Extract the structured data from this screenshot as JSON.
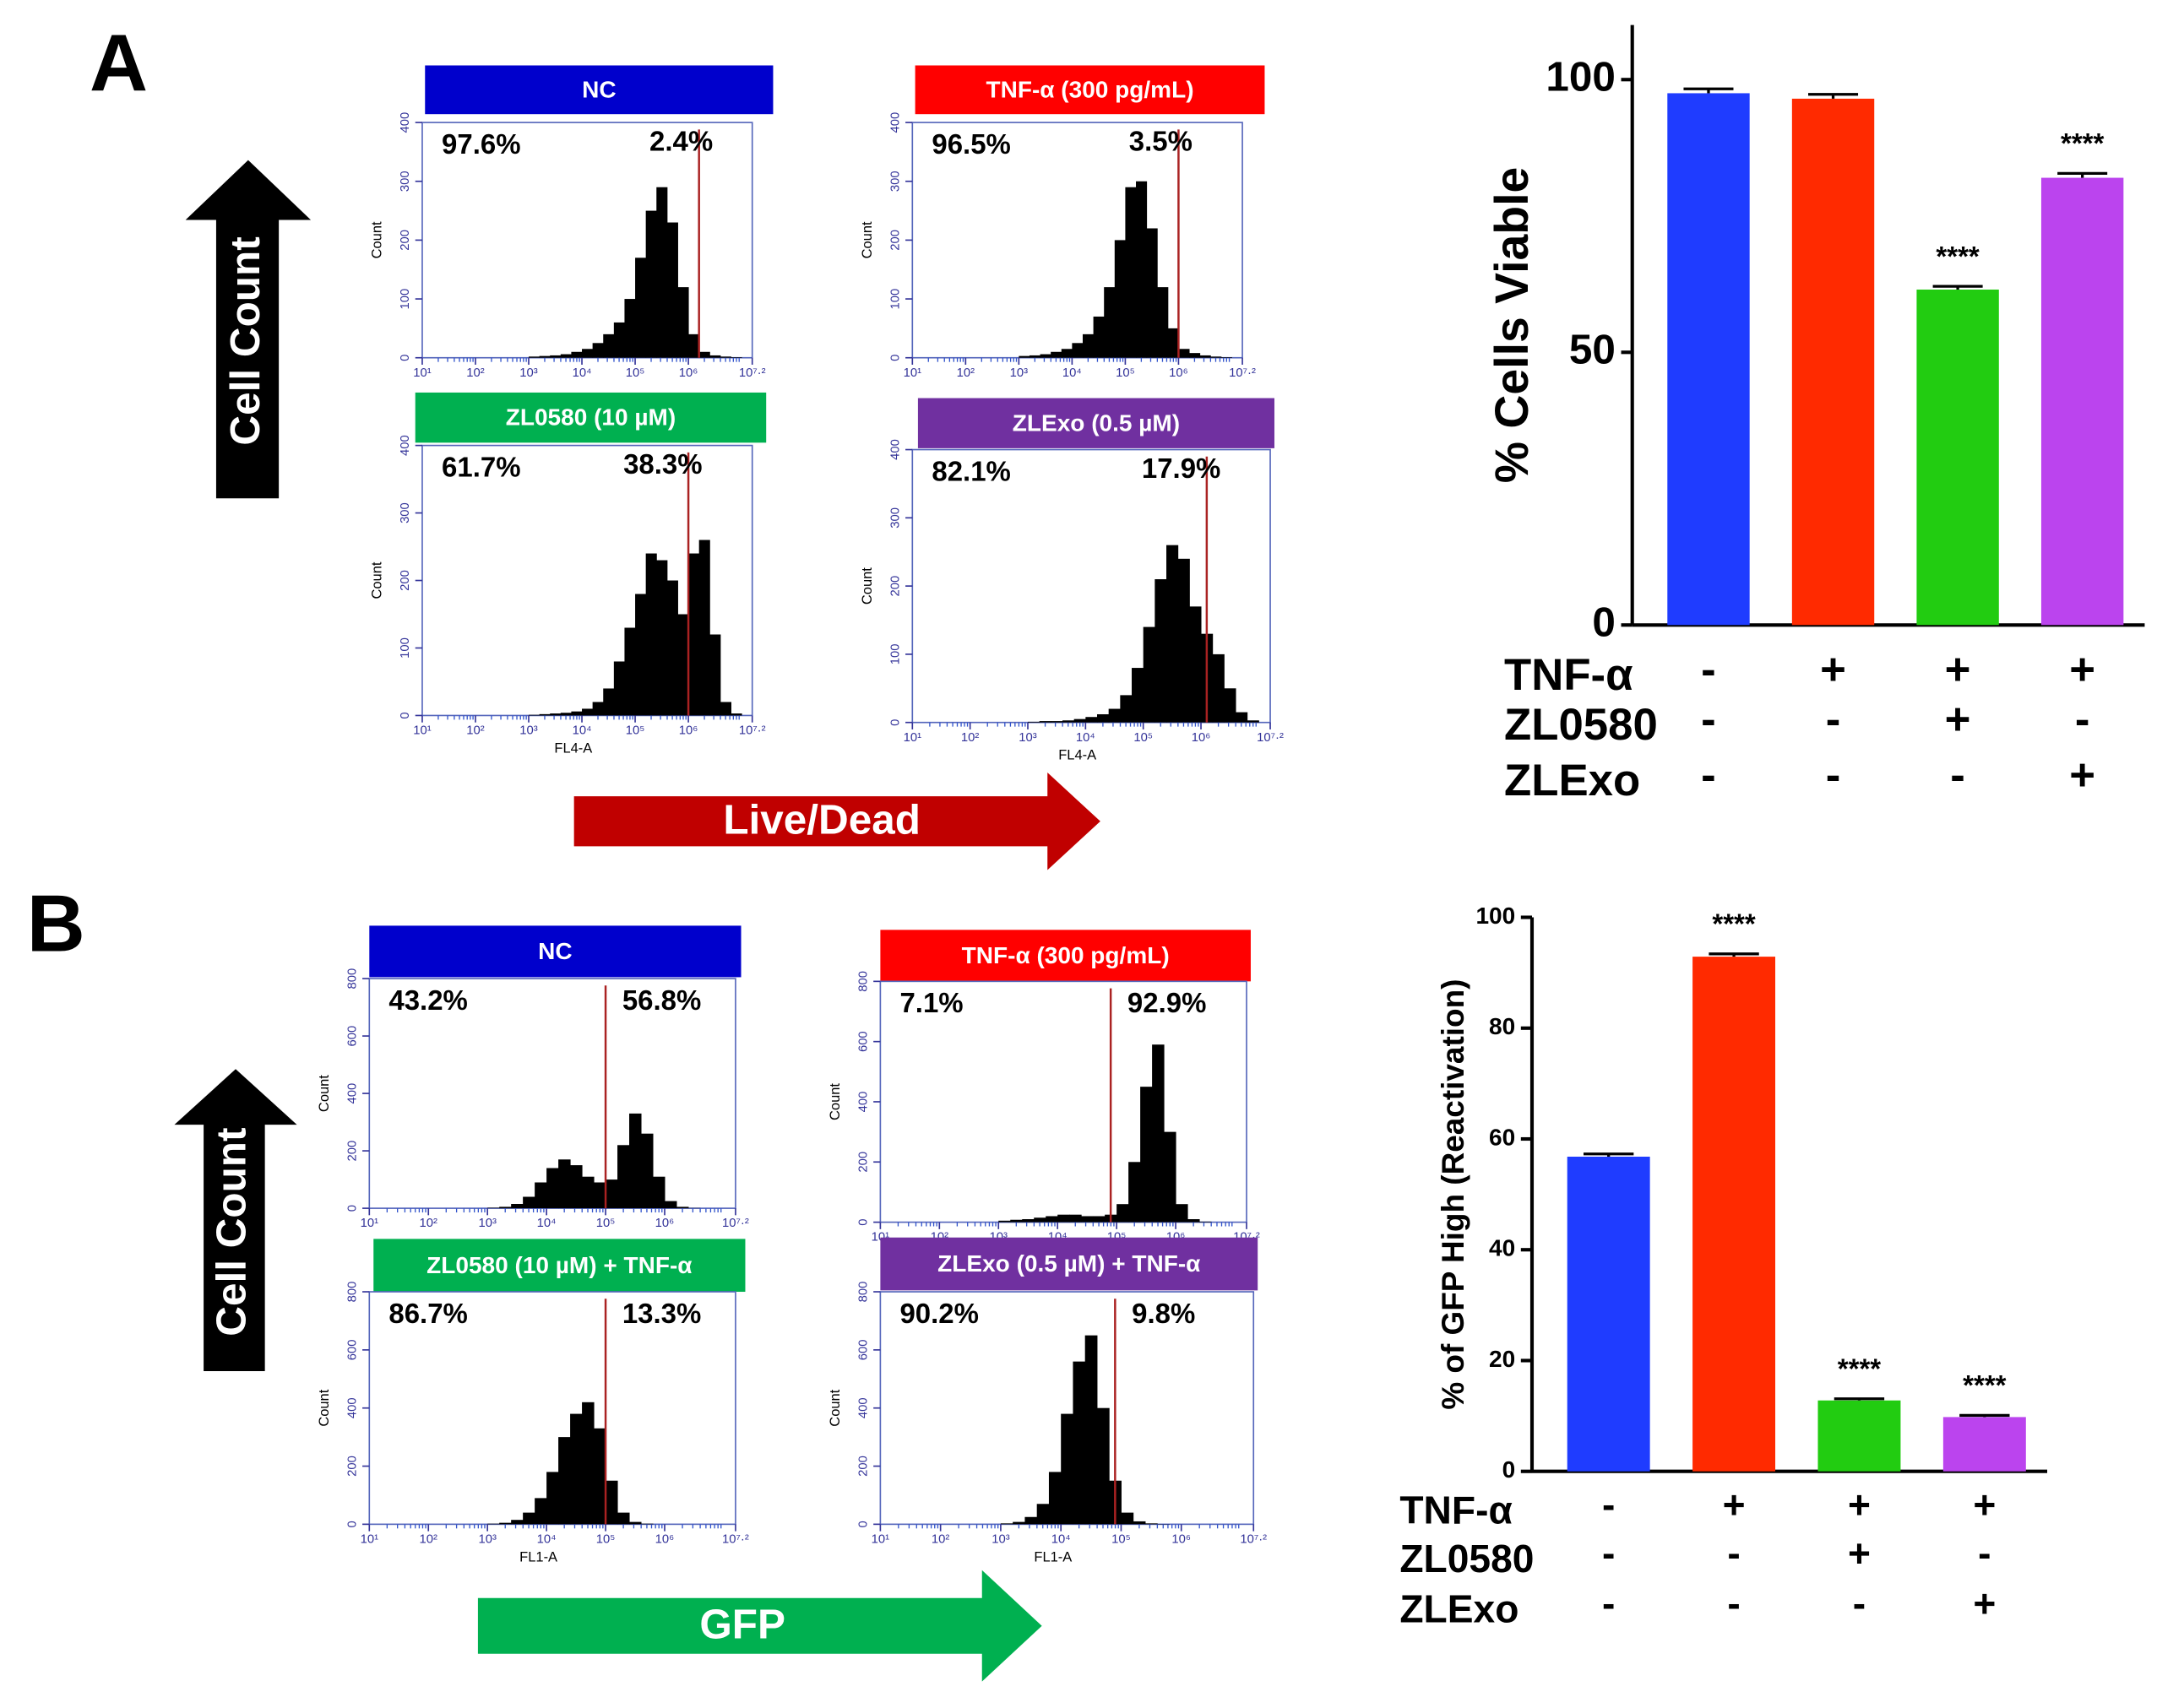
{
  "panel_labels": [
    "A",
    "B"
  ],
  "axis_arrows": {
    "a_y": "Cell Count",
    "a_x": "Live/Dead",
    "b_y": "Cell Count",
    "b_x": "GFP"
  },
  "chart_data": [
    {
      "type": "histogram",
      "title": "NC",
      "title_color": "#0000cc",
      "ylabel": "Count",
      "ylim": [
        0,
        400
      ],
      "yticks": [
        0,
        100,
        200,
        300,
        400
      ],
      "xlim": [
        1,
        7.2
      ],
      "xticks": [
        {
          "value": 1,
          "label": "10¹"
        },
        {
          "value": 2,
          "label": "10²"
        },
        {
          "value": 3,
          "label": "10³"
        },
        {
          "value": 4,
          "label": "10⁴"
        },
        {
          "value": 5,
          "label": "10⁵"
        },
        {
          "value": 6,
          "label": "10⁶"
        },
        {
          "value": 7.2,
          "label": "10⁷·²"
        }
      ],
      "bins": [
        3.0,
        3.2,
        3.4,
        3.6,
        3.8,
        4.0,
        4.2,
        4.4,
        4.6,
        4.8,
        5.0,
        5.2,
        5.4,
        5.6,
        5.8,
        6.0,
        6.2,
        6.4,
        6.6,
        6.8,
        7.0,
        7.2
      ],
      "values": [
        2,
        3,
        4,
        6,
        10,
        15,
        25,
        40,
        60,
        100,
        170,
        250,
        290,
        230,
        120,
        40,
        10,
        4,
        2,
        1,
        0
      ],
      "color": "#000000",
      "gate": 6.2,
      "gate_color": "#aa2222",
      "annotations": [
        "97.6%",
        "2.4%"
      ]
    },
    {
      "type": "histogram",
      "title": "TNF-α (300 pg/mL)",
      "title_color": "#ff0000",
      "ylabel": "Count",
      "ylim": [
        0,
        400
      ],
      "yticks": [
        0,
        100,
        200,
        300,
        400
      ],
      "xlim": [
        1,
        7.2
      ],
      "xticks": [
        {
          "value": 1,
          "label": "10¹"
        },
        {
          "value": 2,
          "label": "10²"
        },
        {
          "value": 3,
          "label": "10³"
        },
        {
          "value": 4,
          "label": "10⁴"
        },
        {
          "value": 5,
          "label": "10⁵"
        },
        {
          "value": 6,
          "label": "10⁶"
        },
        {
          "value": 7.2,
          "label": "10⁷·²"
        }
      ],
      "bins": [
        3.0,
        3.2,
        3.4,
        3.6,
        3.8,
        4.0,
        4.2,
        4.4,
        4.6,
        4.8,
        5.0,
        5.2,
        5.4,
        5.6,
        5.8,
        6.0,
        6.2,
        6.4,
        6.6,
        6.8,
        7.0,
        7.2
      ],
      "values": [
        3,
        4,
        6,
        10,
        15,
        25,
        40,
        70,
        120,
        200,
        290,
        300,
        220,
        120,
        50,
        15,
        8,
        4,
        2,
        1,
        0
      ],
      "color": "#000000",
      "gate": 6.0,
      "gate_color": "#aa2222",
      "annotations": [
        "96.5%",
        "3.5%"
      ]
    },
    {
      "type": "histogram",
      "title": "ZL0580  (10 µM)",
      "title_color": "#00b050",
      "ylabel": "Count",
      "xlabel": "FL4-A",
      "ylim": [
        0,
        400
      ],
      "yticks": [
        0,
        100,
        200,
        300,
        400
      ],
      "xlim": [
        1,
        7.2
      ],
      "xticks": [
        {
          "value": 1,
          "label": "10¹"
        },
        {
          "value": 2,
          "label": "10²"
        },
        {
          "value": 3,
          "label": "10³"
        },
        {
          "value": 4,
          "label": "10⁴"
        },
        {
          "value": 5,
          "label": "10⁵"
        },
        {
          "value": 6,
          "label": "10⁶"
        },
        {
          "value": 7.2,
          "label": "10⁷·²"
        }
      ],
      "bins": [
        3.0,
        3.2,
        3.4,
        3.6,
        3.8,
        4.0,
        4.2,
        4.4,
        4.6,
        4.8,
        5.0,
        5.2,
        5.4,
        5.6,
        5.8,
        6.0,
        6.2,
        6.4,
        6.6,
        6.8,
        7.0,
        7.2
      ],
      "values": [
        1,
        2,
        3,
        4,
        6,
        10,
        20,
        40,
        80,
        130,
        180,
        240,
        230,
        200,
        150,
        240,
        260,
        120,
        20,
        3,
        0
      ],
      "color": "#000000",
      "gate": 6.0,
      "gate_color": "#aa2222",
      "annotations": [
        "61.7%",
        "38.3%"
      ]
    },
    {
      "type": "histogram",
      "title": "ZLExo (0.5 µM)",
      "title_color": "#7030a0",
      "ylabel": "Count",
      "xlabel": "FL4-A",
      "ylim": [
        0,
        400
      ],
      "yticks": [
        0,
        100,
        200,
        300,
        400
      ],
      "xlim": [
        1,
        7.2
      ],
      "xticks": [
        {
          "value": 1,
          "label": "10¹"
        },
        {
          "value": 2,
          "label": "10²"
        },
        {
          "value": 3,
          "label": "10³"
        },
        {
          "value": 4,
          "label": "10⁴"
        },
        {
          "value": 5,
          "label": "10⁵"
        },
        {
          "value": 6,
          "label": "10⁶"
        },
        {
          "value": 7.2,
          "label": "10⁷·²"
        }
      ],
      "bins": [
        3.0,
        3.2,
        3.4,
        3.6,
        3.8,
        4.0,
        4.2,
        4.4,
        4.6,
        4.8,
        5.0,
        5.2,
        5.4,
        5.6,
        5.8,
        6.0,
        6.2,
        6.4,
        6.6,
        6.8,
        7.0,
        7.2
      ],
      "values": [
        1,
        2,
        2,
        3,
        5,
        8,
        12,
        20,
        40,
        80,
        140,
        210,
        260,
        240,
        170,
        130,
        100,
        50,
        15,
        3,
        0
      ],
      "color": "#000000",
      "gate": 6.1,
      "gate_color": "#aa2222",
      "annotations": [
        "82.1%",
        "17.9%"
      ]
    },
    {
      "type": "bar",
      "ylabel": "% Cells Viable",
      "ylim": [
        0,
        110
      ],
      "yticks": [
        0,
        50,
        100
      ],
      "values": [
        97.5,
        96.5,
        61.5,
        82
      ],
      "errors": [
        0.8,
        0.8,
        0.6,
        0.8
      ],
      "colors": [
        "#1f3cff",
        "#ff2a00",
        "#22cc11",
        "#bb44ee"
      ],
      "significance": [
        null,
        null,
        "****",
        "****"
      ],
      "conditions": [
        {
          "name": "TNF-α",
          "signs": [
            "-",
            "+",
            "+",
            "+"
          ]
        },
        {
          "name": "ZL0580",
          "signs": [
            "-",
            "-",
            "+",
            "-"
          ]
        },
        {
          "name": "ZLExo",
          "signs": [
            "-",
            "-",
            "-",
            "+"
          ]
        }
      ]
    },
    {
      "type": "histogram",
      "title": "NC",
      "title_color": "#0000cc",
      "ylabel": "Count",
      "ylim": [
        0,
        800
      ],
      "yticks": [
        0,
        200,
        400,
        600,
        800
      ],
      "xlim": [
        1,
        7.2
      ],
      "xticks": [
        {
          "value": 1,
          "label": "10¹"
        },
        {
          "value": 2,
          "label": "10²"
        },
        {
          "value": 3,
          "label": "10³"
        },
        {
          "value": 4,
          "label": "10⁴"
        },
        {
          "value": 5,
          "label": "10⁵"
        },
        {
          "value": 6,
          "label": "10⁶"
        },
        {
          "value": 7.2,
          "label": "10⁷·²"
        }
      ],
      "bins": [
        3.0,
        3.2,
        3.4,
        3.6,
        3.8,
        4.0,
        4.2,
        4.4,
        4.6,
        4.8,
        5.0,
        5.2,
        5.4,
        5.6,
        5.8,
        6.0,
        6.2,
        6.4,
        6.6,
        6.8,
        7.0,
        7.2
      ],
      "values": [
        2,
        5,
        15,
        40,
        90,
        140,
        170,
        150,
        110,
        90,
        100,
        220,
        330,
        260,
        110,
        25,
        5,
        1,
        0,
        0,
        0
      ],
      "color": "#000000",
      "gate": 5.0,
      "gate_color": "#aa2222",
      "annotations": [
        "43.2%",
        "56.8%"
      ]
    },
    {
      "type": "histogram",
      "title": "TNF-α (300 pg/mL)",
      "title_color": "#ff0000",
      "ylabel": "Count",
      "ylim": [
        0,
        800
      ],
      "yticks": [
        0,
        200,
        400,
        600,
        800
      ],
      "xlim": [
        1,
        7.2
      ],
      "xticks": [
        {
          "value": 1,
          "label": "10¹"
        },
        {
          "value": 2,
          "label": "10²"
        },
        {
          "value": 3,
          "label": "10³"
        },
        {
          "value": 4,
          "label": "10⁴"
        },
        {
          "value": 5,
          "label": "10⁵"
        },
        {
          "value": 6,
          "label": "10⁶"
        },
        {
          "value": 7.2,
          "label": "10⁷·²"
        }
      ],
      "bins": [
        3.0,
        3.2,
        3.4,
        3.6,
        3.8,
        4.0,
        4.2,
        4.4,
        4.6,
        4.8,
        5.0,
        5.2,
        5.4,
        5.6,
        5.8,
        6.0,
        6.2,
        6.4,
        6.6,
        6.8,
        7.0,
        7.2
      ],
      "values": [
        5,
        8,
        10,
        15,
        20,
        25,
        25,
        20,
        20,
        25,
        60,
        200,
        450,
        590,
        300,
        60,
        10,
        2,
        0,
        0,
        0
      ],
      "color": "#000000",
      "gate": 4.9,
      "gate_color": "#aa2222",
      "annotations": [
        "7.1%",
        "92.9%"
      ]
    },
    {
      "type": "histogram",
      "title": "ZL0580  (10 µM) + TNF-α",
      "title_color": "#00b050",
      "ylabel": "Count",
      "xlabel": "FL1-A",
      "ylim": [
        0,
        800
      ],
      "yticks": [
        0,
        200,
        400,
        600,
        800
      ],
      "xlim": [
        1,
        7.2
      ],
      "xticks": [
        {
          "value": 1,
          "label": "10¹"
        },
        {
          "value": 2,
          "label": "10²"
        },
        {
          "value": 3,
          "label": "10³"
        },
        {
          "value": 4,
          "label": "10⁴"
        },
        {
          "value": 5,
          "label": "10⁵"
        },
        {
          "value": 6,
          "label": "10⁶"
        },
        {
          "value": 7.2,
          "label": "10⁷·²"
        }
      ],
      "bins": [
        3.0,
        3.2,
        3.4,
        3.6,
        3.8,
        4.0,
        4.2,
        4.4,
        4.6,
        4.8,
        5.0,
        5.2,
        5.4,
        5.6,
        5.8,
        6.0,
        6.2,
        6.4,
        6.6,
        6.8,
        7.0,
        7.2
      ],
      "values": [
        2,
        5,
        15,
        40,
        90,
        180,
        300,
        380,
        420,
        330,
        150,
        40,
        8,
        2,
        0,
        0,
        0,
        0,
        0,
        0,
        0
      ],
      "color": "#000000",
      "gate": 5.0,
      "gate_color": "#aa2222",
      "annotations": [
        "86.7%",
        "13.3%"
      ]
    },
    {
      "type": "histogram",
      "title": "ZLExo (0.5 µM) + TNF-α",
      "title_color": "#7030a0",
      "ylabel": "Count",
      "xlabel": "FL1-A",
      "ylim": [
        0,
        800
      ],
      "yticks": [
        0,
        200,
        400,
        600,
        800
      ],
      "xlim": [
        1,
        7.2
      ],
      "xticks": [
        {
          "value": 1,
          "label": "10¹"
        },
        {
          "value": 2,
          "label": "10²"
        },
        {
          "value": 3,
          "label": "10³"
        },
        {
          "value": 4,
          "label": "10⁴"
        },
        {
          "value": 5,
          "label": "10⁵"
        },
        {
          "value": 6,
          "label": "10⁶"
        },
        {
          "value": 7.2,
          "label": "10⁷·²"
        }
      ],
      "bins": [
        3.0,
        3.2,
        3.4,
        3.6,
        3.8,
        4.0,
        4.2,
        4.4,
        4.6,
        4.8,
        5.0,
        5.2,
        5.4,
        5.6,
        5.8,
        6.0,
        6.2,
        6.4,
        6.6,
        6.8,
        7.0,
        7.2
      ],
      "values": [
        3,
        8,
        25,
        70,
        180,
        380,
        560,
        650,
        400,
        150,
        40,
        10,
        3,
        1,
        0,
        0,
        0,
        0,
        0,
        0,
        0
      ],
      "color": "#000000",
      "gate": 4.9,
      "gate_color": "#aa2222",
      "annotations": [
        "90.2%",
        "9.8%"
      ]
    },
    {
      "type": "bar",
      "ylabel": "% of GFP High  (Reactivation)",
      "ylim": [
        0,
        100
      ],
      "yticks": [
        0,
        20,
        40,
        60,
        80,
        100
      ],
      "values": [
        56.8,
        92.9,
        12.8,
        9.8
      ],
      "errors": [
        0.5,
        0.5,
        0.3,
        0.3
      ],
      "colors": [
        "#1f3cff",
        "#ff2a00",
        "#22cc11",
        "#bb44ee"
      ],
      "significance": [
        null,
        "****",
        "****",
        "****"
      ],
      "conditions": [
        {
          "name": "TNF-α",
          "signs": [
            "-",
            "+",
            "+",
            "+"
          ]
        },
        {
          "name": "ZL0580",
          "signs": [
            "-",
            "-",
            "+",
            "-"
          ]
        },
        {
          "name": "ZLExo",
          "signs": [
            "-",
            "-",
            "-",
            "+"
          ]
        }
      ]
    }
  ]
}
